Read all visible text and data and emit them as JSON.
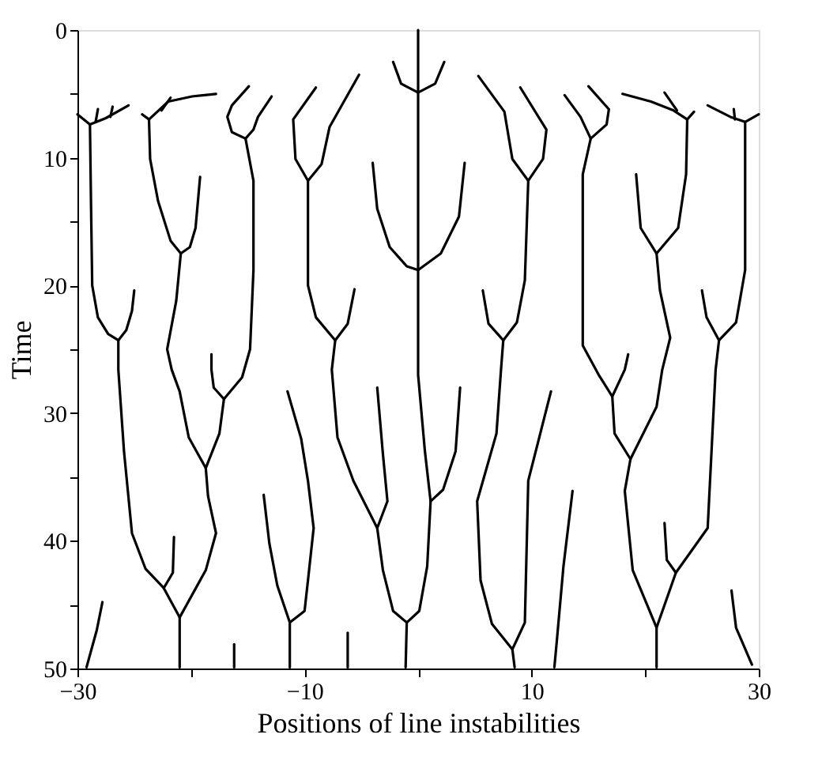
{
  "chart_data": {
    "type": "line",
    "xlabel": "Positions of line instabilities",
    "ylabel": "Time",
    "xlim": [
      -30,
      30
    ],
    "ylim": [
      50,
      0
    ],
    "xticks": [
      {
        "value": -30,
        "label": "−30"
      },
      {
        "value": -20,
        "label": null
      },
      {
        "value": -10,
        "label": "−10"
      },
      {
        "value": 0,
        "label": null
      },
      {
        "value": 10,
        "label": "10"
      },
      {
        "value": 20,
        "label": null
      },
      {
        "value": 30,
        "label": "30"
      }
    ],
    "yticks": [
      0,
      {
        "value": 5,
        "label": null
      },
      10,
      {
        "value": 15,
        "label": null
      },
      20,
      {
        "value": 25,
        "label": null
      },
      30,
      {
        "value": 35,
        "label": null
      },
      40,
      {
        "value": 45,
        "label": null
      },
      50
    ],
    "grid": false,
    "legend": false,
    "marker": "none",
    "line_style": "solid",
    "series": [
      {
        "color": "#000000",
        "x": [
          -30,
          -28.9,
          -27.5,
          -25.5
        ],
        "values": [
          6.6,
          7.4,
          6.9,
          5.9
        ]
      },
      {
        "color": "#000000",
        "x": [
          -28.4,
          -28.2
        ],
        "values": [
          7.2,
          6.2
        ]
      },
      {
        "color": "#000000",
        "x": [
          -27.1,
          -26.9
        ],
        "values": [
          6.8,
          6.0
        ]
      },
      {
        "color": "#000000",
        "x": [
          -28.9,
          -28.8,
          -28.7,
          -28.2,
          -27.3,
          -26.4,
          -25.7,
          -25.2,
          -25
        ],
        "values": [
          7.4,
          14,
          20,
          22.5,
          23.8,
          24.3,
          23.5,
          22,
          20.4
        ]
      },
      {
        "color": "#000000",
        "x": [
          -26.4,
          -26.4,
          -25.9,
          -25.2,
          -24,
          -22.4,
          -21.0,
          -21.0
        ],
        "values": [
          24.3,
          26.6,
          33,
          39.4,
          42.2,
          43.7,
          46,
          49.9
        ]
      },
      {
        "color": "#000000",
        "x": [
          -21.5,
          -21.6,
          -22.4
        ],
        "values": [
          39.7,
          42.5,
          43.7
        ]
      },
      {
        "color": "#000000",
        "x": [
          -24.3,
          -23.7,
          -22,
          -19.9,
          -17.8
        ],
        "values": [
          6.6,
          7.0,
          5.6,
          5.2,
          5.0
        ]
      },
      {
        "color": "#000000",
        "x": [
          -22.6,
          -21.8
        ],
        "values": [
          6.3,
          5.3
        ]
      },
      {
        "color": "#000000",
        "x": [
          -23.7,
          -23.6,
          -22.9,
          -21.8,
          -20.9,
          -20.1,
          -19.6,
          -19.2
        ],
        "values": [
          7.0,
          10.1,
          13.4,
          16.5,
          17.5,
          17,
          15.5,
          11.5
        ]
      },
      {
        "color": "#000000",
        "x": [
          -20.9,
          -21.3,
          -22.1,
          -21.7,
          -21,
          -20.2,
          -18.7,
          -18.5,
          -17.8,
          -18.7,
          -21.0
        ],
        "values": [
          17.5,
          21.2,
          25,
          26.6,
          28.3,
          31.9,
          34.3,
          36.5,
          39.4,
          42.3,
          46
        ]
      },
      {
        "color": "#000000",
        "x": [
          -14.9,
          -16.4,
          -16.8,
          -16.4,
          -15.2,
          -14.5,
          -14.1,
          -12.9
        ],
        "values": [
          4.4,
          5.9,
          6.8,
          8.0,
          8.5,
          7.8,
          6.8,
          5.2
        ]
      },
      {
        "color": "#000000",
        "x": [
          -15.2,
          -14.5,
          -14.5,
          -14.8,
          -15.5,
          -17.1,
          -18.0,
          -18.2,
          -18.2
        ],
        "values": [
          8.5,
          11.8,
          18.8,
          25,
          27.2,
          28.9,
          28,
          26.6,
          25.4
        ]
      },
      {
        "color": "#000000",
        "x": [
          -17.1,
          -17.5,
          -18.7
        ],
        "values": [
          28.9,
          31.6,
          34.3
        ]
      },
      {
        "color": "#000000",
        "x": [
          -9,
          -11,
          -10.8,
          -9.7,
          -8.5,
          -7.8,
          -5.2
        ],
        "values": [
          4.5,
          7,
          10.1,
          11.8,
          10.5,
          7.6,
          3.5
        ]
      },
      {
        "color": "#000000",
        "x": [
          -9.7,
          -9.7,
          -9.0,
          -7.3,
          -6.2,
          -5.6
        ],
        "values": [
          11.8,
          20,
          22.5,
          24.3,
          23,
          20.3
        ]
      },
      {
        "color": "#000000",
        "x": [
          -7.3,
          -7.6,
          -7.1,
          -5.7,
          -3.6,
          -3.1,
          -2.2,
          -1.0,
          -1.1
        ],
        "values": [
          24.3,
          26.6,
          31.9,
          35.3,
          39,
          42.3,
          45.5,
          46.4,
          49.9
        ]
      },
      {
        "color": "#000000",
        "x": [
          -3.6,
          -3.1,
          -2.7,
          -3.6
        ],
        "values": [
          28,
          33.2,
          36.9,
          39
        ]
      },
      {
        "color": "#000000",
        "x": [
          -13.6,
          -13.1,
          -12.4,
          -11.3,
          -10.0,
          -9.7,
          -9.2,
          -9.7,
          -10.3,
          -11.5
        ],
        "values": [
          36.4,
          40.2,
          43.5,
          46.4,
          45.5,
          43.1,
          39,
          35.3,
          32,
          28.3
        ]
      },
      {
        "color": "#000000",
        "x": [
          -11.3,
          -11.3
        ],
        "values": [
          46.4,
          49.9
        ]
      },
      {
        "color": "#000000",
        "x": [
          -27.8,
          -28.3,
          -29.2
        ],
        "values": [
          44.8,
          47,
          49.9
        ]
      },
      {
        "color": "#000000",
        "x": [
          -16.2,
          -16.2
        ],
        "values": [
          48.1,
          49.9
        ]
      },
      {
        "color": "#000000",
        "x": [
          -6.2,
          -6.2
        ],
        "values": [
          47.2,
          49.9
        ]
      },
      {
        "color": "#000000",
        "x": [
          0,
          0,
          0.6,
          1.1,
          0.8,
          0.1,
          -1.0
        ],
        "values": [
          0,
          27,
          33,
          36.9,
          42,
          45.5,
          46.4
        ]
      },
      {
        "color": "#000000",
        "x": [
          3.7,
          3.3,
          2.2,
          1.1
        ],
        "values": [
          28,
          33,
          36,
          36.9
        ]
      },
      {
        "color": "#000000",
        "x": [
          -2.2,
          -1.5,
          0,
          1.5,
          2.3
        ],
        "values": [
          2.5,
          4.2,
          4.9,
          4.2,
          2.5
        ]
      },
      {
        "color": "#000000",
        "x": [
          -4,
          -3.6,
          -2.5,
          -1,
          0,
          2.0,
          3.6,
          4.1
        ],
        "values": [
          10.4,
          14,
          17,
          18.5,
          18.8,
          17.5,
          14.6,
          10.4
        ]
      },
      {
        "color": "#000000",
        "x": [
          5.3,
          7.6,
          8.3,
          9.7,
          11,
          11.3,
          9.0
        ],
        "values": [
          3.6,
          6.4,
          10.1,
          11.8,
          10.1,
          7.8,
          4.5
        ]
      },
      {
        "color": "#000000",
        "x": [
          9.7,
          9.4,
          8.7,
          7.5,
          6.2,
          5.7
        ],
        "values": [
          11.8,
          19.6,
          22.9,
          24.3,
          23,
          20.4
        ]
      },
      {
        "color": "#000000",
        "x": [
          7.5,
          7.3,
          6.9,
          5.2,
          5.5,
          6.5,
          8.3,
          9.4,
          9.7,
          11.7
        ],
        "values": [
          24.3,
          26.6,
          31.6,
          36.9,
          43.1,
          46.5,
          48.5,
          46.4,
          35.3,
          28.3
        ]
      },
      {
        "color": "#000000",
        "x": [
          8.3,
          8.5
        ],
        "values": [
          48.5,
          49.9
        ]
      },
      {
        "color": "#000000",
        "x": [
          13.6,
          12.8,
          12.2,
          12.0
        ],
        "values": [
          36.1,
          42,
          48,
          49.9
        ]
      },
      {
        "color": "#000000",
        "x": [
          12.9,
          14.3,
          15.2,
          16.6,
          16.8,
          15
        ],
        "values": [
          5.1,
          6.8,
          8.5,
          7.4,
          6.2,
          4.4
        ]
      },
      {
        "color": "#000000",
        "x": [
          15.2,
          14.5,
          14.5,
          15.9,
          17.1,
          18.2,
          18.5
        ],
        "values": [
          8.5,
          11.3,
          24.7,
          27,
          28.7,
          26.6,
          25.4
        ]
      },
      {
        "color": "#000000",
        "x": [
          17.1,
          17.3,
          18.7
        ],
        "values": [
          28.7,
          31.6,
          33.6
        ]
      },
      {
        "color": "#000000",
        "x": [
          18.0,
          20.5,
          22.5,
          23.7,
          24.3
        ],
        "values": [
          5.0,
          5.6,
          6.3,
          7.0,
          6.4
        ]
      },
      {
        "color": "#000000",
        "x": [
          21.7,
          22.8
        ],
        "values": [
          4.9,
          6.3
        ]
      },
      {
        "color": "#000000",
        "x": [
          23.7,
          23.6,
          22.9,
          21,
          19.6,
          19.2
        ],
        "values": [
          7.0,
          11.3,
          15.5,
          17.5,
          15.5,
          11.3
        ]
      },
      {
        "color": "#000000",
        "x": [
          21,
          21.3,
          22.2,
          21.5,
          21,
          18.7,
          18.2,
          18.9,
          21,
          21
        ],
        "values": [
          17.5,
          20.4,
          24.1,
          26.6,
          29.5,
          33.6,
          36.1,
          42.3,
          46.8,
          49.9
        ]
      },
      {
        "color": "#000000",
        "x": [
          21.7,
          21.9,
          22.7,
          25.5,
          26.2,
          26.5
        ],
        "values": [
          38.6,
          41.5,
          42.5,
          39,
          26.6,
          24.3
        ]
      },
      {
        "color": "#000000",
        "x": [
          22.7,
          21
        ],
        "values": [
          42.5,
          46.8
        ]
      },
      {
        "color": "#000000",
        "x": [
          25.5,
          27.5,
          28.8,
          30
        ],
        "values": [
          5.9,
          6.8,
          7.2,
          6.6
        ]
      },
      {
        "color": "#000000",
        "x": [
          27.9,
          27.8
        ],
        "values": [
          7.0,
          6.2
        ]
      },
      {
        "color": "#000000",
        "x": [
          28.8,
          28.8,
          28,
          26.5,
          25.4,
          25
        ],
        "values": [
          7.2,
          18.8,
          22.9,
          24.3,
          22.5,
          20.4
        ]
      },
      {
        "color": "#000000",
        "x": [
          27.6,
          28,
          29.4
        ],
        "values": [
          43.9,
          46.8,
          49.7
        ]
      }
    ]
  }
}
